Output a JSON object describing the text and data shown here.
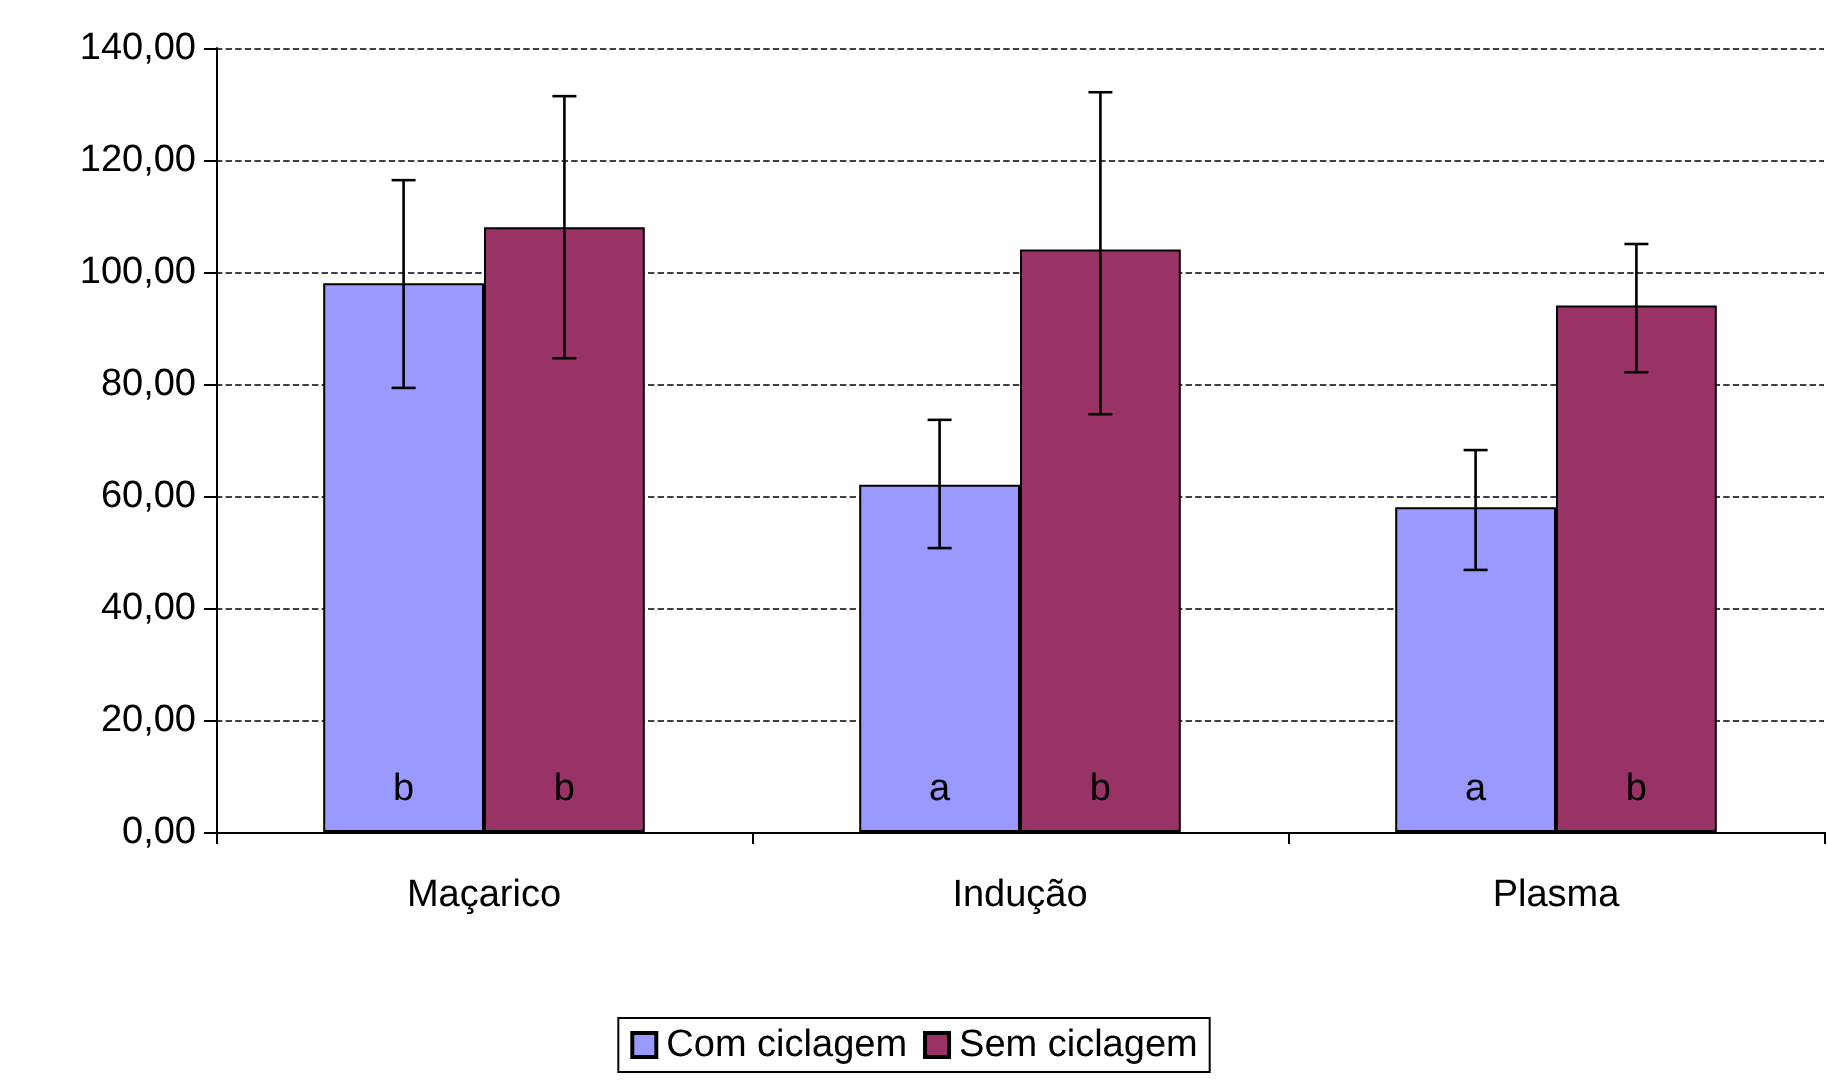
{
  "chart_data": {
    "type": "bar",
    "categories": [
      "Maçarico",
      "Indução",
      "Plasma"
    ],
    "series": [
      {
        "name": "Com ciclagem",
        "color": "#9999ff",
        "values": [
          98,
          62,
          58
        ],
        "errors": [
          [
            79.3,
            116.4
          ],
          [
            50.7,
            73.6
          ],
          [
            46.8,
            68.2
          ]
        ],
        "value_labels": [
          "b",
          "a",
          "a"
        ]
      },
      {
        "name": "Sem ciclagem",
        "color": "#993366",
        "values": [
          108,
          104,
          94
        ],
        "errors": [
          [
            84.6,
            131.4
          ],
          [
            74.6,
            132.1
          ],
          [
            82.1,
            105
          ]
        ],
        "value_labels": [
          "b",
          "b",
          "b"
        ]
      }
    ],
    "ylim": [
      0,
      140
    ],
    "yticks": [
      {
        "value": 0,
        "label": "0,00"
      },
      {
        "value": 20,
        "label": "20,00"
      },
      {
        "value": 40,
        "label": "40,00"
      },
      {
        "value": 60,
        "label": "60,00"
      },
      {
        "value": 80,
        "label": "80,00"
      },
      {
        "value": 100,
        "label": "100,00"
      },
      {
        "value": 120,
        "label": "120,00"
      },
      {
        "value": 140,
        "label": "140,00"
      }
    ],
    "grid": "y",
    "legend": "bottom"
  }
}
